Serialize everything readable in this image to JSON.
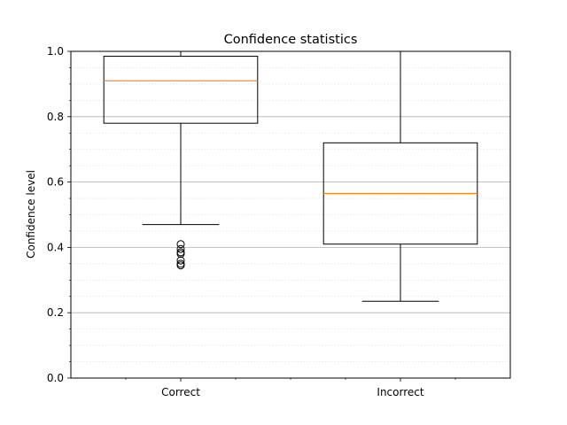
{
  "chart_data": {
    "type": "box",
    "title": "Confidence statistics",
    "xlabel": "",
    "ylabel": "Confidence level",
    "ylim": [
      0,
      1
    ],
    "yticks": [
      "0.0",
      "0.2",
      "0.4",
      "0.6",
      "0.8",
      "1.0"
    ],
    "grid": {
      "major_y": true,
      "minor_y": true
    },
    "categories": [
      "Correct",
      "Incorrect"
    ],
    "boxes": [
      {
        "whisker_low": 0.47,
        "q1": 0.78,
        "median": 0.91,
        "q3": 0.985,
        "whisker_high": 1.0,
        "fliers": [
          0.41,
          0.395,
          0.385,
          0.38,
          0.36,
          0.35,
          0.345
        ]
      },
      {
        "whisker_low": 0.235,
        "q1": 0.41,
        "median": 0.565,
        "q3": 0.72,
        "whisker_high": 1.0,
        "fliers": []
      }
    ],
    "colors": {
      "box": "#000000",
      "median": "#ff7f0e",
      "grid_major": "#b0b0b0",
      "grid_minor": "#e6e6e6"
    }
  }
}
